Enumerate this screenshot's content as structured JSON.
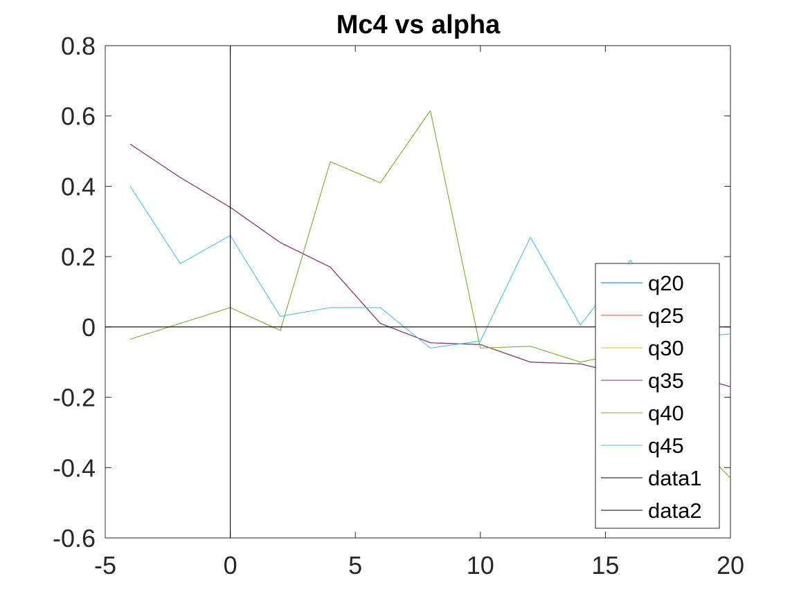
{
  "chart_data": {
    "type": "line",
    "title": "Mc4 vs alpha",
    "xlabel": "",
    "ylabel": "",
    "xlim": [
      -5,
      20
    ],
    "ylim": [
      -0.6,
      0.8
    ],
    "xticks": [
      "-5",
      "0",
      "5",
      "10",
      "15",
      "20"
    ],
    "yticks": [
      "-0.6",
      "-0.4",
      "-0.2",
      "0",
      "0.2",
      "0.4",
      "0.6",
      "0.8"
    ],
    "grid": false,
    "legend_position": "bottom-right",
    "series": [
      {
        "name": "q20",
        "color": "#0072BD",
        "x": [
          -4,
          -2,
          0,
          2,
          4,
          6,
          8,
          10,
          12,
          14,
          16,
          18,
          20
        ],
        "y": [
          0.52,
          0.425,
          0.34,
          0.24,
          0.17,
          0.01,
          -0.045,
          -0.05,
          -0.1,
          -0.105,
          -0.14,
          -0.13,
          -0.17
        ]
      },
      {
        "name": "q25",
        "color": "#D95319",
        "x": [
          -4,
          -2,
          0,
          2,
          4,
          6,
          8,
          10,
          12,
          14,
          16,
          18,
          20
        ],
        "y": [
          0.52,
          0.425,
          0.34,
          0.24,
          0.17,
          0.01,
          -0.045,
          -0.05,
          -0.1,
          -0.105,
          -0.14,
          -0.13,
          -0.17
        ]
      },
      {
        "name": "q30",
        "color": "#EDB120",
        "x": [
          -4,
          -2,
          0,
          2,
          4,
          6,
          8,
          10,
          12,
          14,
          16,
          18,
          20
        ],
        "y": [
          0.52,
          0.425,
          0.34,
          0.24,
          0.17,
          0.01,
          -0.045,
          -0.05,
          -0.1,
          -0.105,
          -0.14,
          -0.13,
          -0.17
        ]
      },
      {
        "name": "q35",
        "color": "#7E2F8E",
        "x": [
          -4,
          -2,
          0,
          2,
          4,
          6,
          8,
          10,
          12,
          14,
          16,
          18,
          20
        ],
        "y": [
          0.52,
          0.425,
          0.34,
          0.24,
          0.17,
          0.01,
          -0.045,
          -0.05,
          -0.1,
          -0.105,
          -0.14,
          -0.13,
          -0.17
        ]
      },
      {
        "name": "q40",
        "color": "#77AC30",
        "x": [
          -4,
          -2,
          0,
          2,
          4,
          6,
          8,
          10,
          12,
          14,
          16,
          18,
          20
        ],
        "y": [
          -0.035,
          0.01,
          0.055,
          -0.01,
          0.47,
          0.41,
          0.615,
          -0.06,
          -0.055,
          -0.1,
          -0.07,
          -0.28,
          -0.43
        ]
      },
      {
        "name": "q45",
        "color": "#4DBEEE",
        "x": [
          -4,
          -2,
          0,
          2,
          4,
          6,
          8,
          10,
          12,
          14,
          16,
          18,
          20
        ],
        "y": [
          0.4,
          0.18,
          0.26,
          0.03,
          0.055,
          0.055,
          -0.06,
          -0.04,
          0.255,
          0.005,
          0.19,
          -0.03,
          -0.02
        ]
      },
      {
        "name": "data1",
        "color": "#000000",
        "x": [
          0,
          0
        ],
        "y": [
          -0.6,
          0.8
        ]
      },
      {
        "name": "data2",
        "color": "#000000",
        "x": [
          -5,
          20
        ],
        "y": [
          0,
          0
        ]
      }
    ]
  }
}
